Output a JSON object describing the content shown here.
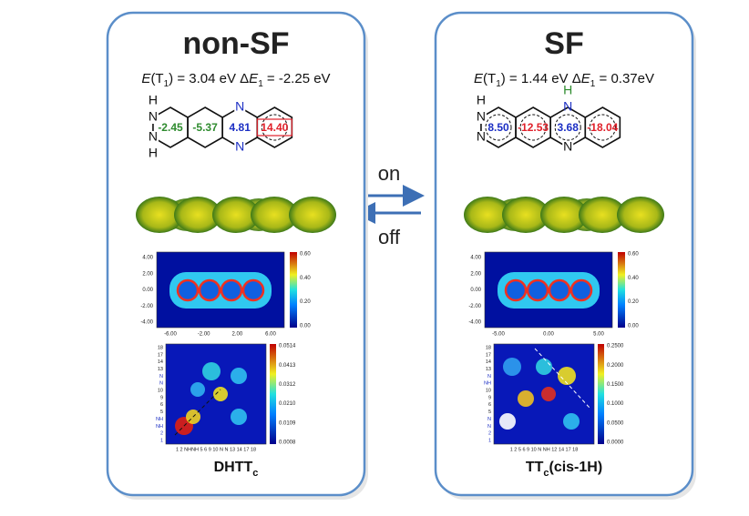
{
  "arrows": {
    "on": "on",
    "off": "off"
  },
  "panels": [
    {
      "title": "non-SF",
      "energy": [
        "E",
        "(T",
        "1",
        ") = 3.04 eV Δ",
        "E",
        "1",
        " = -2.25 eV"
      ],
      "atoms": [
        "H",
        "N",
        "N",
        "H",
        "N",
        "N"
      ],
      "rings": [
        {
          "text": "-2.45",
          "color": "#2e8b2e"
        },
        {
          "text": "-5.37",
          "color": "#2e8b2e"
        },
        {
          "text": "4.81",
          "color": "#1c2fc4"
        },
        {
          "text": "14.40",
          "color": "#e0202a"
        }
      ],
      "map_yticks": [
        "4.00",
        "2.00",
        "0.00",
        "-2.00",
        "-4.00"
      ],
      "map_xticks": [
        "-6.00",
        "-2.00",
        "2.00",
        "6.00"
      ],
      "map_cbar": [
        "0.60",
        "0.40",
        "0.20",
        "0.00"
      ],
      "plot_cbar": [
        "0.0514",
        "0.0413",
        "0.0312",
        "0.0210",
        "0.0109",
        "0.0008"
      ],
      "plot_yticks": [
        "18",
        "17",
        "14",
        "13",
        "N",
        "N",
        "10",
        "9",
        "6",
        "5",
        "NH",
        "NH",
        "2",
        "1"
      ],
      "plot_xlabel": "1  2 NHNH 5  6    9 10 N  N 13 14    17 18",
      "label": [
        "DHTT",
        "c",
        ""
      ]
    },
    {
      "title": "SF",
      "energy": [
        "E",
        "(T",
        "1",
        ") = 1.44 eV Δ",
        "E",
        "1",
        " = 0.37eV"
      ],
      "atoms": [
        "H",
        "N",
        "N",
        "H",
        "N"
      ],
      "rings": [
        {
          "text": "8.50",
          "color": "#1c2fc4"
        },
        {
          "text": "-12.53",
          "color": "#e0202a"
        },
        {
          "text": "3.68",
          "color": "#1c2fc4"
        },
        {
          "text": "-18.04",
          "color": "#e0202a"
        }
      ],
      "map_yticks": [
        "4.00",
        "2.00",
        "0.00",
        "-2.00",
        "-4.00"
      ],
      "map_xticks": [
        "-5.00",
        "0.00",
        "5.00"
      ],
      "map_cbar": [
        "0.60",
        "0.40",
        "0.20",
        "0.00"
      ],
      "plot_cbar": [
        "0.2500",
        "0.2000",
        "0.1500",
        "0.1000",
        "0.0500",
        "0.0000"
      ],
      "plot_yticks": [
        "18",
        "17",
        "14",
        "13",
        "N",
        "NH",
        "10",
        "9",
        "6",
        "5",
        "N",
        "N",
        "2",
        "1"
      ],
      "plot_xlabel": "1  2  5  6  9 10 N NH 12 14   17 18",
      "label": [
        "TT",
        "c",
        "(cis-1H)"
      ]
    }
  ]
}
